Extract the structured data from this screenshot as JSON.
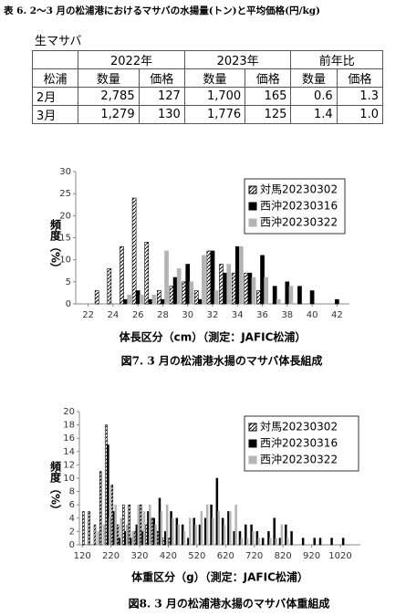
{
  "title": "表 6. 2～3 月の松浦港におけるマサバの水揚量(トン)と平均価格(円/kg)",
  "table": {
    "caption": "生マサバ",
    "header": [
      [
        "2022年",
        "2023年",
        "前年比"
      ],
      [
        "松浦",
        "数量",
        "価格",
        "数量",
        "価格",
        "数量",
        "価格"
      ]
    ],
    "rows": [
      [
        "2月",
        "2,785",
        "127",
        "1,700",
        "165",
        "0.6",
        "1.3"
      ],
      [
        "3月",
        "1,279",
        "130",
        "1,776",
        "125",
        "1.4",
        "1.0"
      ]
    ]
  },
  "chart_data": [
    {
      "type": "bar",
      "caption": "図7. 3 月の松浦港水揚のマサバ体長組成",
      "xlabel": "体長区分（cm）（測定：JAFIC松浦）",
      "ylabel": "頻度（%）",
      "x": [
        23,
        24,
        25,
        26,
        27,
        28,
        29,
        30,
        31,
        32,
        33,
        34,
        35,
        36,
        37,
        38,
        39,
        40,
        41,
        42
      ],
      "series": [
        {
          "name": "対馬20230302",
          "color": "#000000",
          "pattern": "hatch",
          "values": [
            3,
            8,
            13,
            24,
            14,
            3,
            4,
            5,
            3,
            12,
            9,
            7,
            7,
            3,
            0,
            0,
            0,
            0,
            0,
            0
          ]
        },
        {
          "name": "西沖20230316",
          "color": "#000000",
          "values": [
            0,
            0,
            1,
            3,
            1,
            1,
            6,
            9,
            1,
            12,
            7,
            13,
            7,
            11,
            4,
            5,
            4,
            3,
            0,
            1
          ]
        },
        {
          "name": "西沖20230322",
          "color": "#b4b4b4",
          "values": [
            0,
            0,
            2,
            2,
            2,
            12,
            8,
            5,
            11,
            3,
            9,
            13,
            6,
            6,
            1,
            4,
            0,
            0,
            0,
            0
          ]
        }
      ],
      "xlim": [
        21,
        43
      ],
      "xticks": [
        22,
        24,
        26,
        28,
        30,
        32,
        34,
        36,
        38,
        40,
        42
      ],
      "ylim": [
        0,
        30
      ],
      "yticks": [
        0,
        5,
        10,
        15,
        20,
        25,
        30
      ],
      "grid": false,
      "legend": "top-right"
    },
    {
      "type": "bar",
      "caption": "図8. 3 月の松浦港水揚のマサバ体重組成",
      "xlabel": "体重区分（g）（測定：JAFIC松浦）",
      "ylabel": "頻度（%）",
      "x": [
        130,
        150,
        170,
        190,
        210,
        230,
        250,
        270,
        290,
        310,
        330,
        350,
        370,
        390,
        410,
        430,
        450,
        470,
        490,
        510,
        530,
        550,
        570,
        590,
        610,
        630,
        650,
        670,
        690,
        710,
        730,
        750,
        770,
        790,
        810,
        830,
        850,
        870,
        890,
        910,
        930,
        950,
        970,
        990,
        1010,
        1030
      ],
      "series": [
        {
          "name": "対馬20230302",
          "color": "#000000",
          "pattern": "hatch",
          "values": [
            5,
            5,
            3,
            11,
            18,
            9,
            3,
            6,
            6,
            2,
            6,
            3,
            4,
            2,
            1,
            1,
            0,
            0,
            0,
            0,
            0,
            0,
            0,
            0,
            0,
            0,
            0,
            0,
            0,
            0,
            0,
            0,
            0,
            0,
            0,
            0,
            0,
            0,
            0,
            0,
            0,
            0,
            0,
            0,
            0,
            0
          ]
        },
        {
          "name": "西沖20230316",
          "color": "#000000",
          "values": [
            0,
            0,
            0,
            0,
            15,
            5,
            1,
            2,
            1,
            3,
            2,
            5,
            4,
            7,
            2,
            5,
            4,
            3,
            1,
            4,
            3,
            4,
            6,
            10,
            4,
            5,
            2,
            2,
            3,
            3,
            2,
            1,
            2,
            4,
            1,
            3,
            2,
            0,
            1,
            0,
            1,
            1,
            0,
            1,
            0,
            1
          ]
        },
        {
          "name": "西沖20230322",
          "color": "#b4b4b4",
          "values": [
            0,
            0,
            2,
            3,
            4,
            6,
            4,
            3,
            2,
            6,
            5,
            6,
            3,
            5,
            6,
            4,
            3,
            2,
            4,
            3,
            5,
            6,
            4,
            5,
            3,
            5,
            6,
            1,
            1,
            2,
            1,
            0,
            1,
            1,
            3,
            1,
            0,
            0,
            0,
            0,
            0,
            0,
            0,
            0,
            0,
            0
          ]
        }
      ],
      "xlim": [
        110,
        1090
      ],
      "xticks": [
        120,
        220,
        320,
        420,
        520,
        620,
        720,
        820,
        920,
        1020
      ],
      "ylim": [
        0,
        20
      ],
      "yticks": [
        0,
        2,
        4,
        6,
        8,
        10,
        12,
        14,
        16,
        18,
        20
      ],
      "grid": false,
      "legend": "top-right"
    }
  ]
}
